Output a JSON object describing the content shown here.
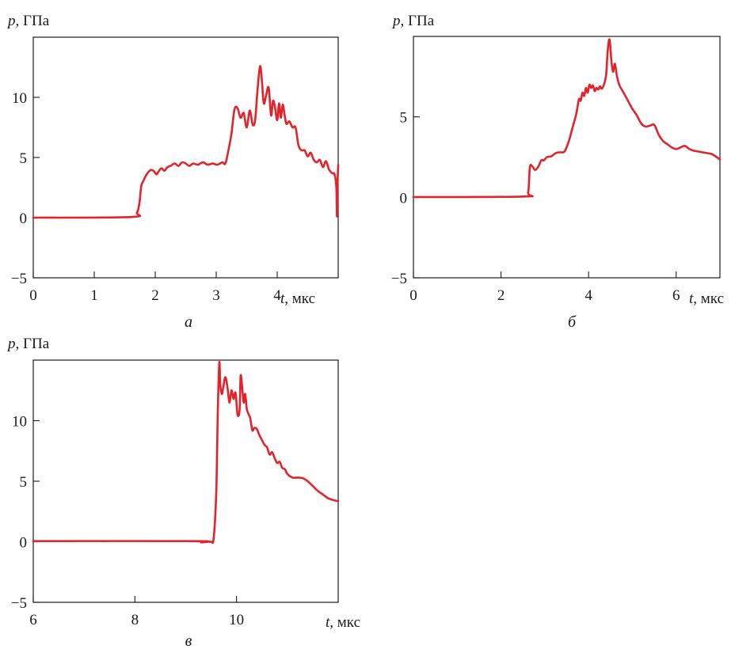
{
  "chart_data": [
    {
      "type": "line",
      "panel_label": "а",
      "ylabel_var": "p",
      "ylabel_unit": ", ГПа",
      "xlabel_var": "t",
      "xlabel_unit": ", мкс",
      "xlim": [
        0,
        5
      ],
      "ylim": [
        -5,
        15
      ],
      "xticks": [
        0,
        1,
        2,
        3,
        4
      ],
      "yticks": [
        -5,
        0,
        5,
        10
      ],
      "color": "#e3232c",
      "series": [
        {
          "x": [
            0,
            1.6,
            1.7,
            1.74,
            1.77,
            1.8,
            1.86,
            1.92,
            1.97,
            2.02,
            2.05,
            2.1,
            2.15,
            2.2,
            2.25,
            2.32,
            2.38,
            2.44,
            2.5,
            2.56,
            2.62,
            2.7,
            2.78,
            2.86,
            2.94,
            3.02,
            3.1,
            3.15,
            3.2,
            3.25,
            3.3,
            3.35,
            3.4,
            3.45,
            3.5,
            3.55,
            3.6,
            3.64,
            3.68,
            3.72,
            3.75,
            3.78,
            3.82,
            3.86,
            3.9,
            3.93,
            3.96,
            4.0,
            4.03,
            4.06,
            4.09,
            4.12,
            4.15,
            4.2,
            4.25,
            4.3,
            4.35,
            4.4,
            4.45,
            4.5,
            4.55,
            4.6,
            4.65,
            4.7,
            4.75,
            4.8,
            4.85,
            4.9,
            4.94,
            4.97,
            4.98,
            4.99,
            5.0
          ],
          "y": [
            0,
            0.05,
            0.4,
            1.2,
            2.6,
            3.0,
            3.6,
            3.95,
            3.9,
            3.6,
            3.8,
            4.1,
            3.9,
            4.2,
            4.3,
            4.5,
            4.3,
            4.6,
            4.5,
            4.3,
            4.5,
            4.4,
            4.6,
            4.4,
            4.5,
            4.4,
            4.6,
            4.5,
            5.6,
            7.0,
            9.0,
            9.1,
            8.3,
            8.7,
            7.5,
            8.9,
            7.7,
            8.2,
            10.8,
            12.6,
            11.3,
            9.5,
            10.2,
            10.8,
            8.5,
            9.7,
            9.3,
            8.1,
            9.5,
            8.3,
            9.4,
            8.6,
            7.8,
            8.0,
            7.5,
            7.5,
            6.0,
            5.6,
            5.6,
            5.1,
            5.4,
            4.8,
            4.6,
            4.8,
            4.2,
            4.7,
            4.0,
            3.7,
            3.6,
            2.5,
            0.1,
            3.0,
            4.4
          ]
        }
      ]
    },
    {
      "type": "line",
      "panel_label": "б",
      "ylabel_var": "p",
      "ylabel_unit": ", ГПа",
      "xlabel_var": "t",
      "xlabel_unit": ", мкс",
      "xlim": [
        0,
        7
      ],
      "ylim": [
        -5,
        10
      ],
      "xticks": [
        0,
        2,
        4,
        6
      ],
      "yticks": [
        -5,
        0,
        5
      ],
      "color": "#e3232c",
      "series": [
        {
          "x": [
            0,
            2.5,
            2.62,
            2.66,
            2.72,
            2.78,
            2.85,
            2.92,
            2.98,
            3.05,
            3.15,
            3.25,
            3.35,
            3.45,
            3.55,
            3.65,
            3.72,
            3.78,
            3.82,
            3.86,
            3.9,
            3.94,
            3.98,
            4.02,
            4.06,
            4.1,
            4.14,
            4.18,
            4.22,
            4.26,
            4.3,
            4.35,
            4.4,
            4.44,
            4.48,
            4.52,
            4.56,
            4.6,
            4.65,
            4.7,
            4.8,
            4.9,
            5.0,
            5.1,
            5.2,
            5.3,
            5.4,
            5.5,
            5.6,
            5.7,
            5.8,
            5.9,
            6.0,
            6.1,
            6.2,
            6.3,
            6.4,
            6.5,
            6.6,
            6.7,
            6.8,
            6.9,
            7.0
          ],
          "y": [
            0.02,
            0.05,
            0.3,
            1.9,
            1.9,
            1.7,
            1.9,
            2.3,
            2.3,
            2.5,
            2.55,
            2.75,
            2.8,
            2.85,
            3.5,
            4.5,
            5.2,
            6.1,
            6.0,
            6.5,
            6.3,
            6.8,
            6.5,
            7.0,
            6.8,
            6.95,
            6.6,
            6.8,
            6.7,
            6.9,
            6.75,
            7.0,
            7.6,
            9.2,
            9.8,
            8.5,
            7.8,
            8.3,
            7.5,
            7.0,
            6.5,
            6.0,
            5.5,
            5.1,
            4.6,
            4.4,
            4.45,
            4.5,
            3.9,
            3.5,
            3.3,
            3.1,
            3.0,
            3.1,
            3.2,
            3.0,
            2.9,
            2.85,
            2.8,
            2.75,
            2.7,
            2.55,
            2.35
          ]
        }
      ]
    },
    {
      "type": "line",
      "panel_label": "в",
      "ylabel_var": "p",
      "ylabel_unit": ", ГПа",
      "xlabel_var": "t",
      "xlabel_unit": ", мкс",
      "xlim": [
        6,
        12
      ],
      "ylim": [
        -5,
        15
      ],
      "xticks": [
        6,
        8,
        10
      ],
      "yticks": [
        -5,
        0,
        5,
        10
      ],
      "color": "#e3232c",
      "series": [
        {
          "x": [
            6,
            9.2,
            9.3,
            9.4,
            9.5,
            9.55,
            9.6,
            9.63,
            9.66,
            9.68,
            9.71,
            9.74,
            9.78,
            9.82,
            9.86,
            9.9,
            9.94,
            9.98,
            10.02,
            10.06,
            10.08,
            10.11,
            10.14,
            10.17,
            10.2,
            10.23,
            10.27,
            10.31,
            10.35,
            10.4,
            10.45,
            10.5,
            10.55,
            10.6,
            10.65,
            10.7,
            10.75,
            10.8,
            10.85,
            10.9,
            10.95,
            11.0,
            11.1,
            11.2,
            11.3,
            11.4,
            11.5,
            11.6,
            11.7,
            11.8,
            11.9,
            12.0
          ],
          "y": [
            0.05,
            0.05,
            -0.05,
            0.05,
            0.0,
            0.3,
            4.0,
            10.5,
            14.8,
            13.0,
            12.2,
            12.8,
            13.6,
            12.8,
            11.5,
            12.5,
            11.8,
            12.3,
            10.5,
            10.9,
            13.7,
            12.8,
            11.5,
            12.2,
            11.0,
            10.6,
            10.2,
            9.2,
            9.4,
            9.3,
            8.8,
            8.4,
            8.0,
            7.8,
            7.2,
            7.4,
            6.9,
            6.5,
            6.6,
            6.1,
            6.0,
            5.6,
            5.3,
            5.3,
            5.25,
            5.0,
            4.6,
            4.2,
            3.9,
            3.6,
            3.45,
            3.35
          ]
        }
      ]
    }
  ]
}
